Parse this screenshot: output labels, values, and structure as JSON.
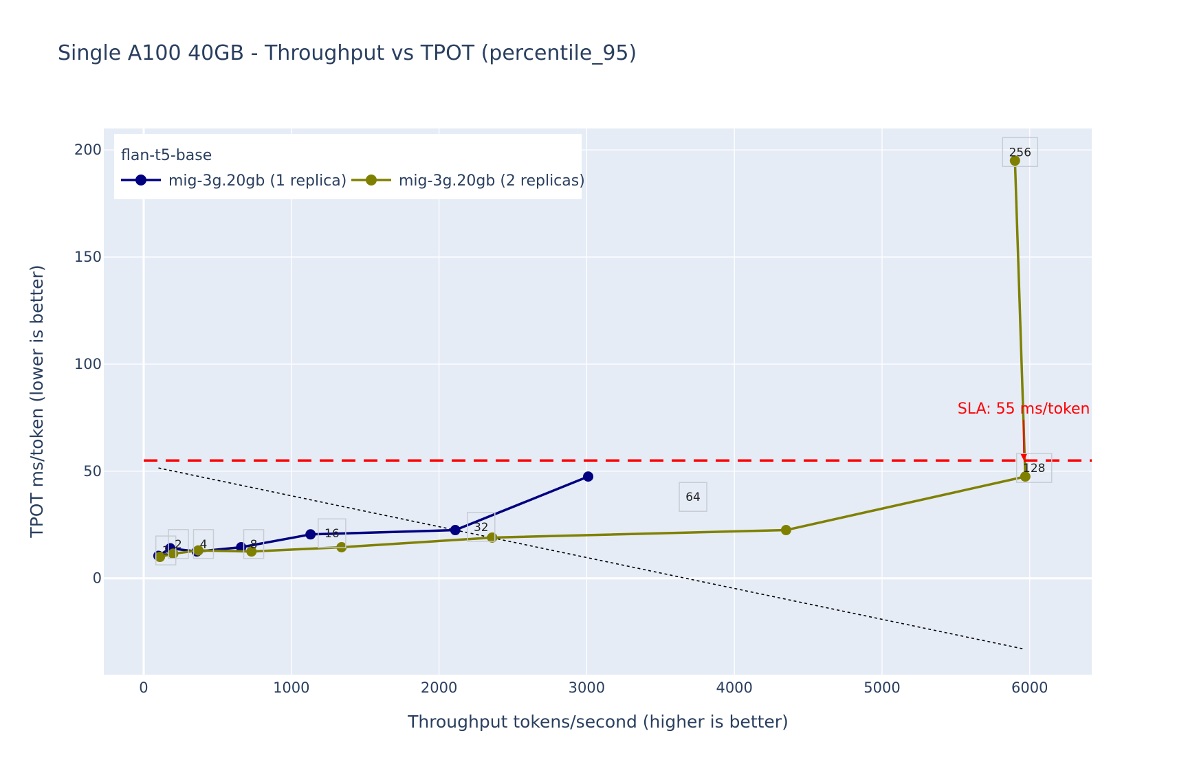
{
  "chart_data": {
    "type": "line",
    "title": "Single A100 40GB - Throughput vs TPOT (percentile_95)",
    "xlabel": "Throughput tokens/second (higher is better)",
    "ylabel": "TPOT ms/token (lower is better)",
    "xlim": [
      -270,
      6420
    ],
    "ylim": [
      -45,
      210
    ],
    "xticks": [
      0,
      1000,
      2000,
      3000,
      4000,
      5000,
      6000
    ],
    "yticks": [
      0,
      50,
      100,
      150,
      200
    ],
    "legend": {
      "title": "flan-t5-base",
      "position": "top-left"
    },
    "series": [
      {
        "name": "mig-3g.20gb (1 replica)",
        "color": "#000080",
        "x": [
          100,
          180,
          360,
          660,
          1130,
          2110,
          3010
        ],
        "y": [
          10.5,
          14,
          12.5,
          14.5,
          20.5,
          22.5,
          47.5
        ]
      },
      {
        "name": "mig-3g.20gb (2 replicas)",
        "color": "#808000",
        "x": [
          110,
          200,
          370,
          730,
          1340,
          2360,
          4350,
          5970,
          5900
        ],
        "y": [
          10,
          11.5,
          13,
          12.5,
          14.5,
          19,
          22.5,
          47.5,
          195
        ]
      }
    ],
    "point_labels": [
      {
        "text": "1",
        "x": 150,
        "y": 13
      },
      {
        "text": "2",
        "x": 235,
        "y": 16
      },
      {
        "text": "4",
        "x": 405,
        "y": 16
      },
      {
        "text": "8",
        "x": 745,
        "y": 16
      },
      {
        "text": "16",
        "x": 1275,
        "y": 21
      },
      {
        "text": "32",
        "x": 2285,
        "y": 24
      },
      {
        "text": "64",
        "x": 3720,
        "y": 38
      },
      {
        "text": "128",
        "x": 6030,
        "y": 51.5
      },
      {
        "text": "256",
        "x": 5935,
        "y": 199
      }
    ],
    "sla_line": {
      "y": 55,
      "label": "SLA: 55 ms/token",
      "color": "#ff0000"
    },
    "trend_line": {
      "x": [
        100,
        5960
      ],
      "y": [
        51.5,
        -33
      ]
    },
    "sla_arrow": {
      "x": 5960,
      "y_from": 74,
      "y_to": 55
    }
  }
}
